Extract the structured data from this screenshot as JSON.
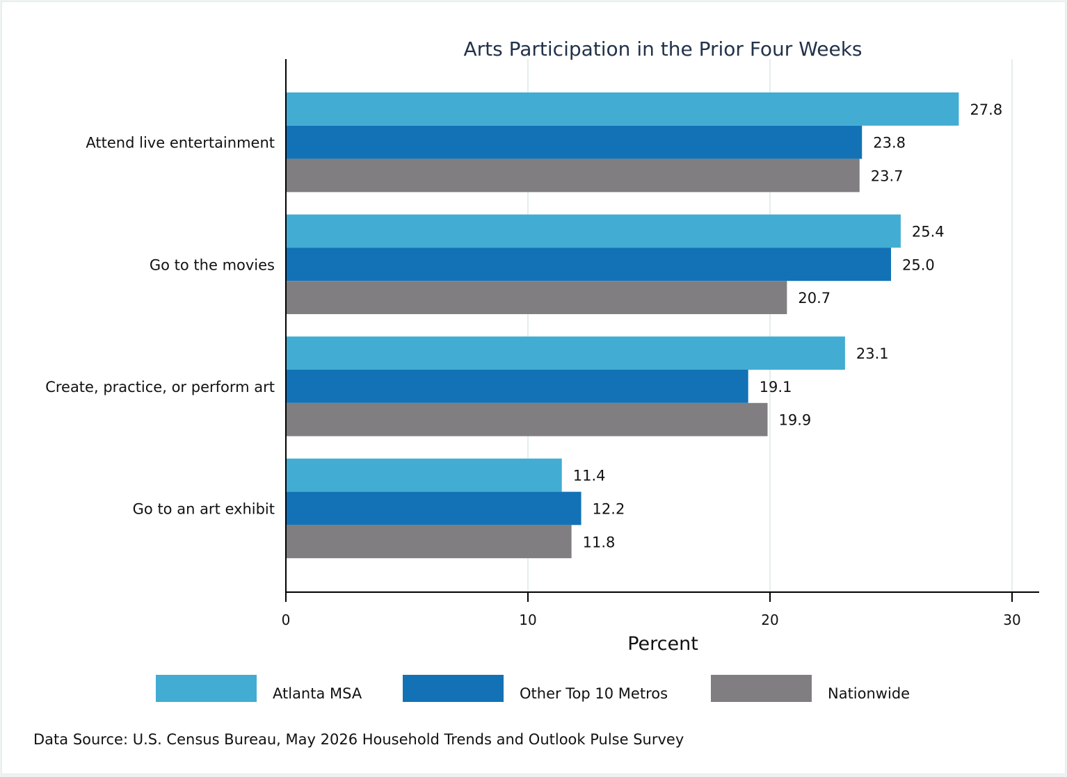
{
  "chart_data": {
    "type": "bar",
    "orientation": "horizontal",
    "title": "Arts Participation in the Prior Four Weeks",
    "xlabel": "Percent",
    "ylabel": "",
    "xlim": [
      0,
      31
    ],
    "xticks": [
      0,
      10,
      20,
      30
    ],
    "grid": true,
    "legend_position": "bottom",
    "categories": [
      "Attend live entertainment",
      "Go to the movies",
      "Create, practice, or perform art",
      "Go to an art exhibit"
    ],
    "series": [
      {
        "name": "Atlanta MSA",
        "color": "#42acd3",
        "values": [
          27.8,
          25.4,
          23.1,
          11.4
        ]
      },
      {
        "name": "Other Top 10 Metros",
        "color": "#1372b5",
        "values": [
          23.8,
          25.0,
          19.1,
          12.2
        ]
      },
      {
        "name": "Nationwide",
        "color": "#807e81",
        "values": [
          23.7,
          20.7,
          19.9,
          11.8
        ]
      }
    ],
    "source": "Data Source: U.S. Census Bureau, May 2026 Household Trends and Outlook Pulse Survey"
  }
}
